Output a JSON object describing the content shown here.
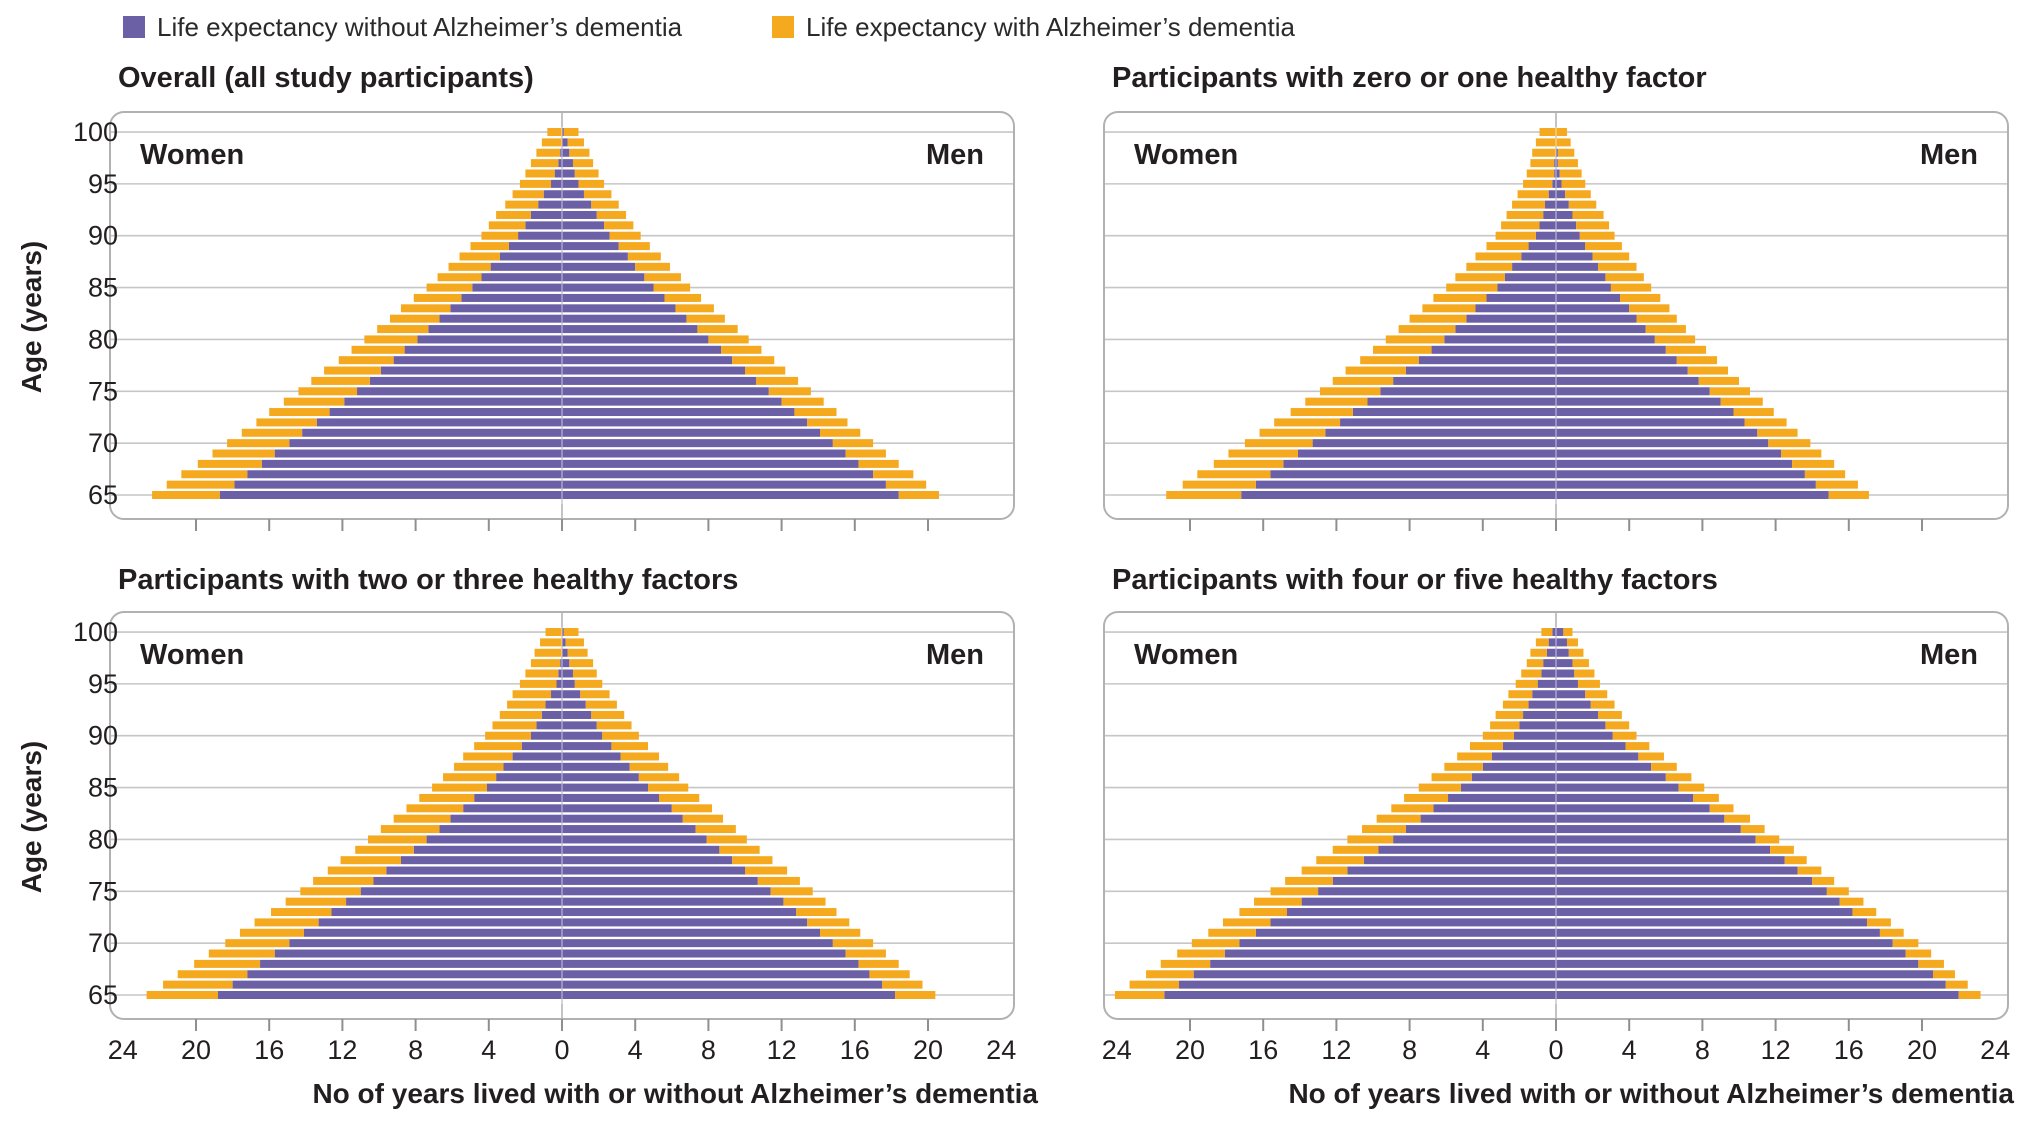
{
  "colors": {
    "purple": "#6b5fa5",
    "yellow": "#f5a91f",
    "gridline": "#c6c6c6",
    "border": "#b1b1b1",
    "center_line": "#b4b4b4",
    "tick": "#8f8f8f",
    "text": "#231f20"
  },
  "legend": {
    "items": [
      {
        "label": "Life expectancy without Alzheimer’s dementia",
        "color": "#6b5fa5"
      },
      {
        "label": "Life expectancy with Alzheimer’s dementia",
        "color": "#f5a91f"
      }
    ]
  },
  "y_axis": {
    "label": "Age (years)",
    "ticks": [
      100,
      95,
      90,
      85,
      80,
      75,
      70,
      65
    ]
  },
  "x_axis": {
    "title": "No of years lived with or without Alzheimer’s dementia",
    "tick_values": [
      24,
      20,
      16,
      12,
      8,
      4,
      0,
      4,
      8,
      12,
      16,
      20,
      24
    ],
    "max_each_side": 24,
    "tick_step": 4
  },
  "side_labels": {
    "left": "Women",
    "right": "Men"
  },
  "chart_data": {
    "type": "bar",
    "subtype": "population-pyramid, stacked horizontal bars per age year",
    "series_meaning": {
      "purple": "years lived without Alzheimer’s dementia (from centre 0 outward)",
      "yellow": "additional years lived with Alzheimer’s dementia; outer bar end = total remaining life expectancy",
      "left_side": "Women",
      "right_side": "Men"
    },
    "x_range_each_side": [
      0,
      24
    ],
    "ages": [
      65,
      66,
      67,
      68,
      69,
      70,
      71,
      72,
      73,
      74,
      75,
      76,
      77,
      78,
      79,
      80,
      81,
      82,
      83,
      84,
      85,
      86,
      87,
      88,
      89,
      90,
      91,
      92,
      93,
      94,
      95,
      96,
      97,
      98,
      99,
      100
    ],
    "panels": [
      {
        "title": "Overall (all study participants)",
        "grid_pos": "top-left",
        "women": {
          "without_ad": [
            18.7,
            17.9,
            17.2,
            16.4,
            15.7,
            14.9,
            14.2,
            13.4,
            12.7,
            11.9,
            11.2,
            10.5,
            9.9,
            9.2,
            8.6,
            7.9,
            7.3,
            6.7,
            6.1,
            5.5,
            4.9,
            4.4,
            3.9,
            3.4,
            2.9,
            2.4,
            2.0,
            1.7,
            1.3,
            1.0,
            0.6,
            0.4,
            0.2,
            0.1,
            0,
            0
          ],
          "total": [
            22.4,
            21.6,
            20.8,
            19.9,
            19.1,
            18.3,
            17.5,
            16.7,
            16.0,
            15.2,
            14.4,
            13.7,
            13.0,
            12.2,
            11.5,
            10.8,
            10.1,
            9.4,
            8.8,
            8.1,
            7.4,
            6.8,
            6.2,
            5.6,
            5.0,
            4.4,
            4.0,
            3.6,
            3.1,
            2.7,
            2.3,
            2.0,
            1.7,
            1.4,
            1.1,
            0.8
          ]
        },
        "men": {
          "without_ad": [
            18.4,
            17.7,
            17.0,
            16.2,
            15.5,
            14.8,
            14.1,
            13.4,
            12.7,
            12.0,
            11.3,
            10.6,
            10.0,
            9.3,
            8.7,
            8.0,
            7.4,
            6.8,
            6.2,
            5.6,
            5.0,
            4.5,
            4.0,
            3.6,
            3.1,
            2.6,
            2.3,
            1.9,
            1.6,
            1.2,
            0.9,
            0.7,
            0.6,
            0.4,
            0.3,
            0.1
          ],
          "total": [
            20.6,
            19.9,
            19.2,
            18.4,
            17.7,
            17.0,
            16.3,
            15.6,
            15.0,
            14.3,
            13.6,
            12.9,
            12.2,
            11.6,
            10.9,
            10.2,
            9.6,
            8.9,
            8.3,
            7.6,
            7.0,
            6.5,
            5.9,
            5.4,
            4.8,
            4.3,
            3.9,
            3.5,
            3.1,
            2.7,
            2.3,
            2.0,
            1.7,
            1.5,
            1.2,
            0.9
          ]
        }
      },
      {
        "title": "Participants with zero or one healthy factor",
        "grid_pos": "top-right",
        "women": {
          "without_ad": [
            17.2,
            16.4,
            15.6,
            14.9,
            14.1,
            13.3,
            12.6,
            11.8,
            11.1,
            10.3,
            9.6,
            8.9,
            8.2,
            7.5,
            6.8,
            6.1,
            5.5,
            4.9,
            4.4,
            3.8,
            3.2,
            2.8,
            2.4,
            1.9,
            1.5,
            1.1,
            0.9,
            0.7,
            0.6,
            0.4,
            0.2,
            0.1,
            0.1,
            0,
            0,
            0
          ],
          "total": [
            21.3,
            20.4,
            19.6,
            18.7,
            17.9,
            17.0,
            16.2,
            15.4,
            14.5,
            13.7,
            12.9,
            12.2,
            11.5,
            10.7,
            10.0,
            9.3,
            8.6,
            8.0,
            7.3,
            6.7,
            6.0,
            5.5,
            4.9,
            4.4,
            3.8,
            3.3,
            3.0,
            2.7,
            2.4,
            2.1,
            1.8,
            1.6,
            1.4,
            1.3,
            1.1,
            0.9
          ]
        },
        "men": {
          "without_ad": [
            14.9,
            14.2,
            13.6,
            12.9,
            12.3,
            11.6,
            11.0,
            10.3,
            9.7,
            9.0,
            8.4,
            7.8,
            7.2,
            6.6,
            6.0,
            5.4,
            4.9,
            4.4,
            4.0,
            3.5,
            3.0,
            2.7,
            2.3,
            2.0,
            1.6,
            1.3,
            1.1,
            0.9,
            0.7,
            0.5,
            0.3,
            0.2,
            0.1,
            0.1,
            0,
            0
          ],
          "total": [
            17.1,
            16.5,
            15.8,
            15.2,
            14.5,
            13.9,
            13.2,
            12.6,
            11.9,
            11.3,
            10.6,
            10.0,
            9.4,
            8.8,
            8.2,
            7.6,
            7.1,
            6.6,
            6.2,
            5.7,
            5.2,
            4.8,
            4.4,
            4.0,
            3.6,
            3.2,
            2.9,
            2.6,
            2.2,
            1.9,
            1.6,
            1.4,
            1.2,
            1.0,
            0.8,
            0.6
          ]
        }
      },
      {
        "title": "Participants with two or three healthy factors",
        "grid_pos": "bottom-left",
        "women": {
          "without_ad": [
            18.8,
            18.0,
            17.2,
            16.5,
            15.7,
            14.9,
            14.1,
            13.3,
            12.6,
            11.8,
            11.0,
            10.3,
            9.6,
            8.8,
            8.1,
            7.4,
            6.7,
            6.1,
            5.4,
            4.8,
            4.1,
            3.6,
            3.2,
            2.7,
            2.2,
            1.7,
            1.4,
            1.1,
            0.9,
            0.6,
            0.3,
            0.2,
            0.1,
            0,
            0,
            0
          ],
          "total": [
            22.7,
            21.8,
            21.0,
            20.1,
            19.3,
            18.4,
            17.6,
            16.8,
            15.9,
            15.1,
            14.3,
            13.6,
            12.8,
            12.1,
            11.3,
            10.6,
            9.9,
            9.2,
            8.5,
            7.8,
            7.1,
            6.5,
            5.9,
            5.4,
            4.8,
            4.2,
            3.8,
            3.4,
            3.0,
            2.7,
            2.3,
            2.0,
            1.7,
            1.5,
            1.2,
            0.9
          ]
        },
        "men": {
          "without_ad": [
            18.2,
            17.5,
            16.8,
            16.2,
            15.5,
            14.8,
            14.1,
            13.4,
            12.8,
            12.1,
            11.4,
            10.7,
            10.0,
            9.3,
            8.6,
            7.9,
            7.3,
            6.6,
            6.0,
            5.3,
            4.7,
            4.2,
            3.7,
            3.2,
            2.7,
            2.2,
            1.9,
            1.6,
            1.3,
            1.0,
            0.7,
            0.6,
            0.4,
            0.3,
            0.2,
            0.1
          ],
          "total": [
            20.4,
            19.7,
            19.0,
            18.4,
            17.7,
            17.0,
            16.3,
            15.7,
            15.0,
            14.4,
            13.7,
            13.0,
            12.3,
            11.5,
            10.8,
            10.1,
            9.5,
            8.8,
            8.2,
            7.5,
            6.9,
            6.4,
            5.8,
            5.3,
            4.7,
            4.2,
            3.8,
            3.4,
            3.0,
            2.6,
            2.2,
            1.9,
            1.7,
            1.4,
            1.2,
            0.9
          ]
        }
      },
      {
        "title": "Participants with four or five healthy factors",
        "grid_pos": "bottom-right",
        "women": {
          "without_ad": [
            21.4,
            20.6,
            19.8,
            18.9,
            18.1,
            17.3,
            16.4,
            15.6,
            14.7,
            13.9,
            13.0,
            12.2,
            11.4,
            10.5,
            9.7,
            8.9,
            8.2,
            7.4,
            6.7,
            5.9,
            5.2,
            4.6,
            4.0,
            3.5,
            2.9,
            2.3,
            2.0,
            1.8,
            1.5,
            1.3,
            1.0,
            0.8,
            0.7,
            0.5,
            0.4,
            0.2
          ],
          "total": [
            24.1,
            23.3,
            22.4,
            21.6,
            20.7,
            19.9,
            19.0,
            18.2,
            17.3,
            16.5,
            15.6,
            14.8,
            13.9,
            13.1,
            12.2,
            11.4,
            10.6,
            9.8,
            9.0,
            8.3,
            7.5,
            6.8,
            6.1,
            5.4,
            4.7,
            4.0,
            3.6,
            3.3,
            2.9,
            2.6,
            2.2,
            1.9,
            1.6,
            1.4,
            1.1,
            0.8
          ]
        },
        "men": {
          "without_ad": [
            22.0,
            21.3,
            20.6,
            19.8,
            19.1,
            18.4,
            17.7,
            17.0,
            16.2,
            15.5,
            14.8,
            14.0,
            13.2,
            12.5,
            11.7,
            10.9,
            10.1,
            9.2,
            8.4,
            7.5,
            6.7,
            6.0,
            5.2,
            4.5,
            3.8,
            3.1,
            2.7,
            2.3,
            1.9,
            1.6,
            1.2,
            1.0,
            0.9,
            0.7,
            0.6,
            0.4
          ],
          "total": [
            23.2,
            22.5,
            21.8,
            21.2,
            20.5,
            19.8,
            19.0,
            18.3,
            17.5,
            16.8,
            16.0,
            15.2,
            14.5,
            13.7,
            13.0,
            12.2,
            11.4,
            10.6,
            9.7,
            8.9,
            8.1,
            7.4,
            6.6,
            5.9,
            5.1,
            4.4,
            4.0,
            3.6,
            3.2,
            2.8,
            2.4,
            2.1,
            1.8,
            1.5,
            1.2,
            0.9
          ]
        }
      }
    ]
  }
}
